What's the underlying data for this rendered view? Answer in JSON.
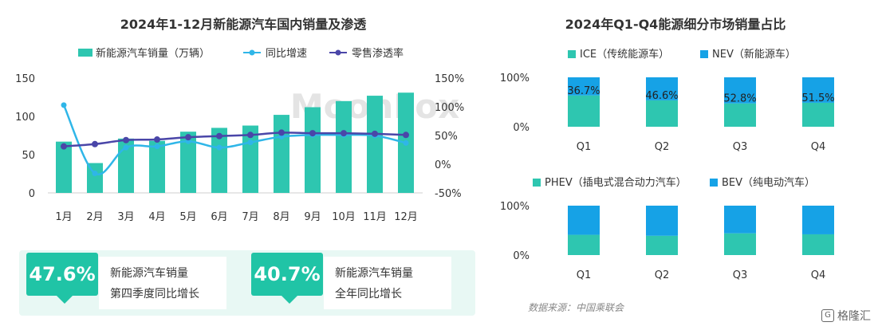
{
  "chart_data": [
    {
      "type": "bar+line",
      "title": "2024年1-12月新能源汽车国内销量及渗透",
      "categories": [
        "1月",
        "2月",
        "3月",
        "4月",
        "5月",
        "6月",
        "7月",
        "8月",
        "9月",
        "10月",
        "11月",
        "12月"
      ],
      "series": [
        {
          "name": "新能源汽车销量（万辆）",
          "kind": "bar",
          "axis": "left",
          "color": "#2ec6b0",
          "values": [
            67,
            39,
            71,
            68,
            80,
            85,
            88,
            102,
            112,
            120,
            127,
            131
          ]
        },
        {
          "name": "同比增速",
          "kind": "line",
          "axis": "right",
          "color": "#2fb6e8",
          "values": [
            103,
            -16,
            29,
            31,
            40,
            29,
            38,
            48,
            51,
            51,
            50,
            37
          ]
        },
        {
          "name": "零售渗透率",
          "kind": "line",
          "axis": "right",
          "color": "#4a46a8",
          "values": [
            31,
            35,
            42,
            43,
            47,
            49,
            51,
            55,
            54,
            54,
            53,
            51
          ]
        }
      ],
      "left_axis": {
        "ticks": [
          "0",
          "50",
          "100",
          "150"
        ],
        "ylim": [
          0,
          150
        ]
      },
      "right_axis": {
        "ticks": [
          "-50%",
          "0%",
          "50%",
          "100%",
          "150%"
        ],
        "ylim": [
          -50,
          150
        ]
      },
      "legend_position": "top"
    },
    {
      "type": "stacked-bar",
      "title": "2024年Q1-Q4能源细分市场销量占比",
      "categories": [
        "Q1",
        "Q2",
        "Q3",
        "Q4"
      ],
      "series": [
        {
          "name": "ICE（传统能源车）",
          "color": "#2ec6b0",
          "values": [
            63.3,
            53.4,
            47.2,
            48.5
          ]
        },
        {
          "name": "NEV（新能源车）",
          "color": "#16a2e6",
          "values": [
            36.7,
            46.6,
            52.8,
            51.5
          ]
        }
      ],
      "labels": [
        "36.7%",
        "46.6%",
        "52.8%",
        "51.5%"
      ],
      "y_ticks": [
        "0%",
        "100%"
      ]
    },
    {
      "type": "stacked-bar",
      "categories": [
        "Q1",
        "Q2",
        "Q3",
        "Q4"
      ],
      "series": [
        {
          "name": "PHEV（插电式混合动力汽车）",
          "color": "#2ec6b0",
          "values": [
            41,
            39,
            44,
            42
          ]
        },
        {
          "name": "BEV（纯电动汽车）",
          "color": "#16a2e6",
          "values": [
            59,
            61,
            56,
            58
          ]
        }
      ],
      "y_ticks": [
        "0%",
        "100%"
      ]
    }
  ],
  "stats": [
    {
      "value": "47.6%",
      "line1": "新能源汽车销量",
      "line2": "第四季度同比增长"
    },
    {
      "value": "40.7%",
      "line1": "新能源汽车销量",
      "line2": "全年同比增长"
    }
  ],
  "watermark": "MoonFox",
  "source": "数据来源：中国乘联会",
  "brand": "格隆汇",
  "brand_icon": "G"
}
